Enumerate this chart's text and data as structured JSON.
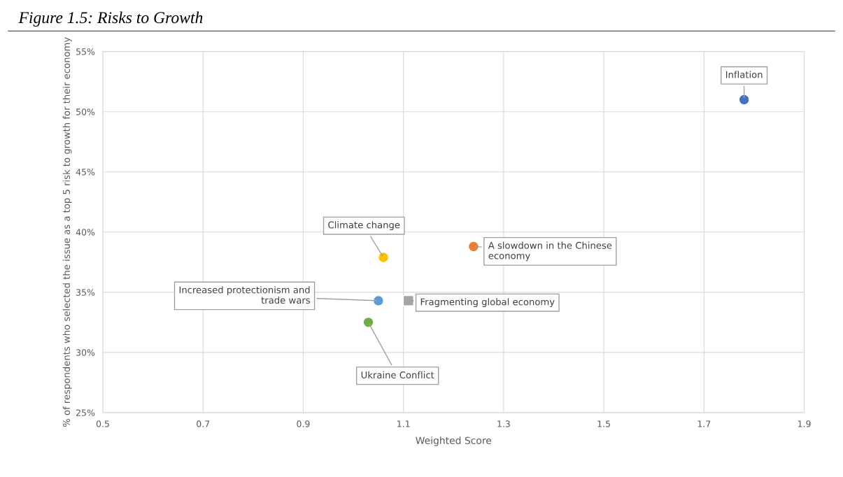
{
  "chart_data": {
    "type": "scatter",
    "title": "Figure 1.5: Risks to Growth",
    "xlabel": "Weighted Score",
    "ylabel": "% of respondents who selected the issue as a top 5 risk to growth for their economy",
    "series": [
      {
        "x": [
          1.78,
          1.24,
          1.06,
          1.05,
          1.03
        ],
        "values": [
          51.0,
          38.8,
          37.9,
          34.3,
          32.5
        ],
        "colors": [
          "#4472c4",
          "#ed7d31",
          "#ffc000",
          "#5b9bd5",
          "#70ad47"
        ],
        "marker": "circle"
      },
      {
        "x": [
          1.11
        ],
        "values": [
          34.3
        ],
        "colors": [
          "#a5a5a5"
        ],
        "marker": "square"
      }
    ],
    "annotations": [
      {
        "text": "Inflation",
        "x": 1.78,
        "y": 51.0
      },
      {
        "text": "A slowdown in the Chinese\neconomy",
        "x": 1.24,
        "y": 38.8
      },
      {
        "text": "Climate change",
        "x": 1.06,
        "y": 37.9
      },
      {
        "text": "Increased protectionism and\ntrade wars",
        "x": 1.05,
        "y": 34.3
      },
      {
        "text": "Fragmenting global economy",
        "x": 1.11,
        "y": 34.3
      },
      {
        "text": "Ukraine Conflict",
        "x": 1.03,
        "y": 32.5
      }
    ],
    "xlim": [
      0.5,
      1.9
    ],
    "xticks": [
      0.5,
      0.7,
      0.9,
      1.1,
      1.3,
      1.5,
      1.7,
      1.9
    ],
    "ylim": [
      25,
      55
    ],
    "yticks": [
      {
        "value": 25,
        "label": "25%"
      },
      {
        "value": 30,
        "label": "30%"
      },
      {
        "value": 35,
        "label": "35%"
      },
      {
        "value": 40,
        "label": "40%"
      },
      {
        "value": 45,
        "label": "45%"
      },
      {
        "value": 50,
        "label": "50%"
      },
      {
        "value": 55,
        "label": "55%"
      }
    ],
    "grid": true,
    "legend": false
  }
}
